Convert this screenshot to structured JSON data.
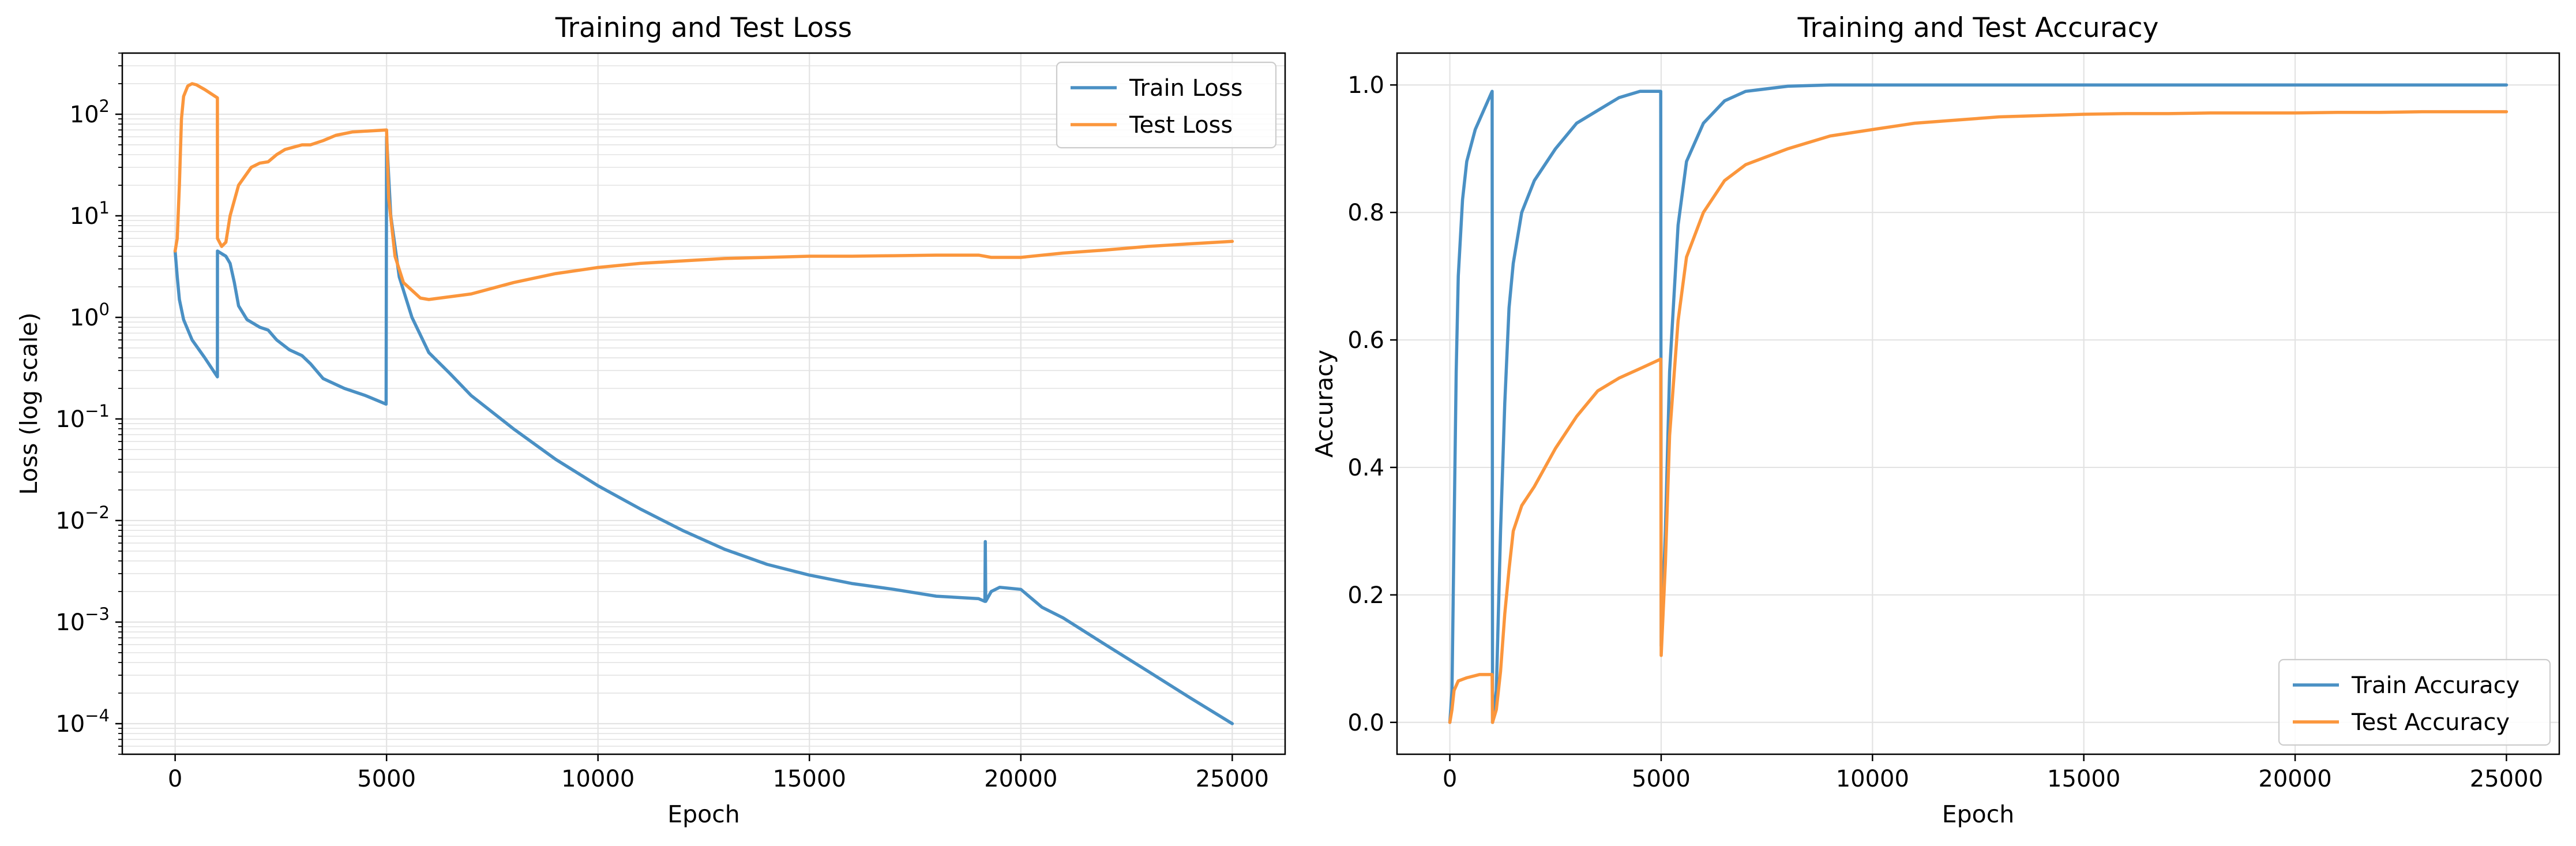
{
  "colors": {
    "train": "#4a90c4",
    "test": "#fb963c",
    "axis": "#000000",
    "grid": "#e3e3e3",
    "legend_border": "#cccccc"
  },
  "chart_data": [
    {
      "type": "line",
      "title": "Training and Test Loss",
      "xlabel": "Epoch",
      "ylabel": "Loss (log scale)",
      "yscale": "log",
      "xlim": [
        -1250,
        26250
      ],
      "ylim": [
        5e-05,
        400
      ],
      "xticks": [
        0,
        5000,
        10000,
        15000,
        20000,
        25000
      ],
      "xtick_labels": [
        "0",
        "5000",
        "10000",
        "15000",
        "20000",
        "25000"
      ],
      "yticks": [
        0.0001,
        0.001,
        0.01,
        0.1,
        1,
        10,
        100
      ],
      "ytick_labels": [
        {
          "base": "10",
          "exp": "−4"
        },
        {
          "base": "10",
          "exp": "−3"
        },
        {
          "base": "10",
          "exp": "−2"
        },
        {
          "base": "10",
          "exp": "−1"
        },
        {
          "base": "10",
          "exp": "0"
        },
        {
          "base": "10",
          "exp": "1"
        },
        {
          "base": "10",
          "exp": "2"
        }
      ],
      "grid": true,
      "legend_position": "top-right",
      "series": [
        {
          "name": "Train Loss",
          "color_key": "train",
          "points": [
            [
              0,
              4.5
            ],
            [
              50,
              2.5
            ],
            [
              100,
              1.5
            ],
            [
              200,
              0.95
            ],
            [
              400,
              0.6
            ],
            [
              700,
              0.4
            ],
            [
              1000,
              0.26
            ],
            [
              1001,
              4.5
            ],
            [
              1200,
              4.0
            ],
            [
              1300,
              3.4
            ],
            [
              1400,
              2.2
            ],
            [
              1500,
              1.3
            ],
            [
              1700,
              0.95
            ],
            [
              2000,
              0.8
            ],
            [
              2200,
              0.75
            ],
            [
              2400,
              0.6
            ],
            [
              2700,
              0.48
            ],
            [
              3000,
              0.42
            ],
            [
              3200,
              0.35
            ],
            [
              3500,
              0.25
            ],
            [
              4000,
              0.2
            ],
            [
              4500,
              0.17
            ],
            [
              4990,
              0.14
            ],
            [
              5000,
              60
            ],
            [
              5100,
              10
            ],
            [
              5300,
              2.5
            ],
            [
              5600,
              1.0
            ],
            [
              6000,
              0.45
            ],
            [
              6500,
              0.28
            ],
            [
              7000,
              0.17
            ],
            [
              8000,
              0.08
            ],
            [
              9000,
              0.04
            ],
            [
              10000,
              0.022
            ],
            [
              11000,
              0.013
            ],
            [
              12000,
              0.008
            ],
            [
              13000,
              0.0052
            ],
            [
              14000,
              0.0037
            ],
            [
              15000,
              0.0029
            ],
            [
              16000,
              0.0024
            ],
            [
              17000,
              0.0021
            ],
            [
              18000,
              0.0018
            ],
            [
              19000,
              0.0017
            ],
            [
              19150,
              0.0016
            ],
            [
              19160,
              0.0062
            ],
            [
              19170,
              0.0016
            ],
            [
              19300,
              0.002
            ],
            [
              19500,
              0.0022
            ],
            [
              20000,
              0.0021
            ],
            [
              20500,
              0.0014
            ],
            [
              21000,
              0.0011
            ],
            [
              22000,
              0.0006
            ],
            [
              23000,
              0.00033
            ],
            [
              24000,
              0.00018
            ],
            [
              25000,
              0.0001
            ]
          ]
        },
        {
          "name": "Test Loss",
          "color_key": "test",
          "points": [
            [
              0,
              4.5
            ],
            [
              50,
              6
            ],
            [
              100,
              20
            ],
            [
              150,
              90
            ],
            [
              200,
              150
            ],
            [
              300,
              190
            ],
            [
              400,
              200
            ],
            [
              500,
              195
            ],
            [
              700,
              175
            ],
            [
              1000,
              145
            ],
            [
              1001,
              6
            ],
            [
              1100,
              5
            ],
            [
              1200,
              5.5
            ],
            [
              1300,
              10
            ],
            [
              1500,
              20
            ],
            [
              1800,
              30
            ],
            [
              2000,
              33
            ],
            [
              2200,
              34
            ],
            [
              2400,
              40
            ],
            [
              2600,
              45
            ],
            [
              3000,
              50
            ],
            [
              3200,
              50
            ],
            [
              3500,
              55
            ],
            [
              3800,
              62
            ],
            [
              4200,
              67
            ],
            [
              4990,
              70
            ],
            [
              5000,
              70
            ],
            [
              5050,
              15
            ],
            [
              5200,
              4
            ],
            [
              5400,
              2.2
            ],
            [
              5800,
              1.55
            ],
            [
              6000,
              1.5
            ],
            [
              7000,
              1.7
            ],
            [
              8000,
              2.2
            ],
            [
              9000,
              2.7
            ],
            [
              10000,
              3.1
            ],
            [
              11000,
              3.4
            ],
            [
              12000,
              3.6
            ],
            [
              13000,
              3.8
            ],
            [
              14000,
              3.9
            ],
            [
              15000,
              4.0
            ],
            [
              16000,
              4.0
            ],
            [
              17000,
              4.05
            ],
            [
              18000,
              4.1
            ],
            [
              19000,
              4.1
            ],
            [
              19300,
              3.9
            ],
            [
              20000,
              3.9
            ],
            [
              21000,
              4.3
            ],
            [
              22000,
              4.6
            ],
            [
              23000,
              5.0
            ],
            [
              24000,
              5.3
            ],
            [
              25000,
              5.6
            ]
          ]
        }
      ]
    },
    {
      "type": "line",
      "title": "Training and Test Accuracy",
      "xlabel": "Epoch",
      "ylabel": "Accuracy",
      "yscale": "linear",
      "xlim": [
        -1250,
        26250
      ],
      "ylim": [
        -0.05,
        1.05
      ],
      "xticks": [
        0,
        5000,
        10000,
        15000,
        20000,
        25000
      ],
      "xtick_labels": [
        "0",
        "5000",
        "10000",
        "15000",
        "20000",
        "25000"
      ],
      "yticks": [
        0.0,
        0.2,
        0.4,
        0.6,
        0.8,
        1.0
      ],
      "ytick_labels": [
        "0.0",
        "0.2",
        "0.4",
        "0.6",
        "0.8",
        "1.0"
      ],
      "grid": true,
      "legend_position": "bottom-right",
      "series": [
        {
          "name": "Train Accuracy",
          "color_key": "train",
          "points": [
            [
              0,
              0.0
            ],
            [
              50,
              0.05
            ],
            [
              100,
              0.3
            ],
            [
              150,
              0.55
            ],
            [
              200,
              0.7
            ],
            [
              300,
              0.82
            ],
            [
              400,
              0.88
            ],
            [
              600,
              0.93
            ],
            [
              800,
              0.96
            ],
            [
              1000,
              0.99
            ],
            [
              1010,
              0.0
            ],
            [
              1100,
              0.05
            ],
            [
              1200,
              0.3
            ],
            [
              1300,
              0.5
            ],
            [
              1400,
              0.65
            ],
            [
              1500,
              0.72
            ],
            [
              1700,
              0.8
            ],
            [
              2000,
              0.85
            ],
            [
              2500,
              0.9
            ],
            [
              3000,
              0.94
            ],
            [
              3500,
              0.96
            ],
            [
              4000,
              0.98
            ],
            [
              4500,
              0.99
            ],
            [
              4990,
              0.99
            ],
            [
              5000,
              0.12
            ],
            [
              5100,
              0.3
            ],
            [
              5200,
              0.55
            ],
            [
              5400,
              0.78
            ],
            [
              5600,
              0.88
            ],
            [
              6000,
              0.94
            ],
            [
              6500,
              0.975
            ],
            [
              7000,
              0.99
            ],
            [
              8000,
              0.998
            ],
            [
              9000,
              1.0
            ],
            [
              25000,
              1.0
            ]
          ]
        },
        {
          "name": "Test Accuracy",
          "color_key": "test",
          "points": [
            [
              0,
              0.0
            ],
            [
              50,
              0.02
            ],
            [
              100,
              0.05
            ],
            [
              200,
              0.065
            ],
            [
              400,
              0.07
            ],
            [
              700,
              0.075
            ],
            [
              1000,
              0.075
            ],
            [
              1010,
              0.0
            ],
            [
              1100,
              0.02
            ],
            [
              1200,
              0.08
            ],
            [
              1300,
              0.17
            ],
            [
              1400,
              0.24
            ],
            [
              1500,
              0.3
            ],
            [
              1700,
              0.34
            ],
            [
              2000,
              0.37
            ],
            [
              2500,
              0.43
            ],
            [
              3000,
              0.48
            ],
            [
              3500,
              0.52
            ],
            [
              4000,
              0.54
            ],
            [
              4500,
              0.555
            ],
            [
              4990,
              0.57
            ],
            [
              5000,
              0.105
            ],
            [
              5100,
              0.25
            ],
            [
              5200,
              0.45
            ],
            [
              5400,
              0.63
            ],
            [
              5600,
              0.73
            ],
            [
              6000,
              0.8
            ],
            [
              6500,
              0.85
            ],
            [
              7000,
              0.875
            ],
            [
              8000,
              0.9
            ],
            [
              9000,
              0.92
            ],
            [
              10000,
              0.93
            ],
            [
              11000,
              0.94
            ],
            [
              12000,
              0.945
            ],
            [
              13000,
              0.95
            ],
            [
              14000,
              0.952
            ],
            [
              15000,
              0.954
            ],
            [
              16000,
              0.955
            ],
            [
              17000,
              0.955
            ],
            [
              18000,
              0.956
            ],
            [
              19000,
              0.956
            ],
            [
              20000,
              0.956
            ],
            [
              21000,
              0.957
            ],
            [
              22000,
              0.957
            ],
            [
              23000,
              0.958
            ],
            [
              24000,
              0.958
            ],
            [
              25000,
              0.958
            ]
          ]
        }
      ]
    }
  ]
}
